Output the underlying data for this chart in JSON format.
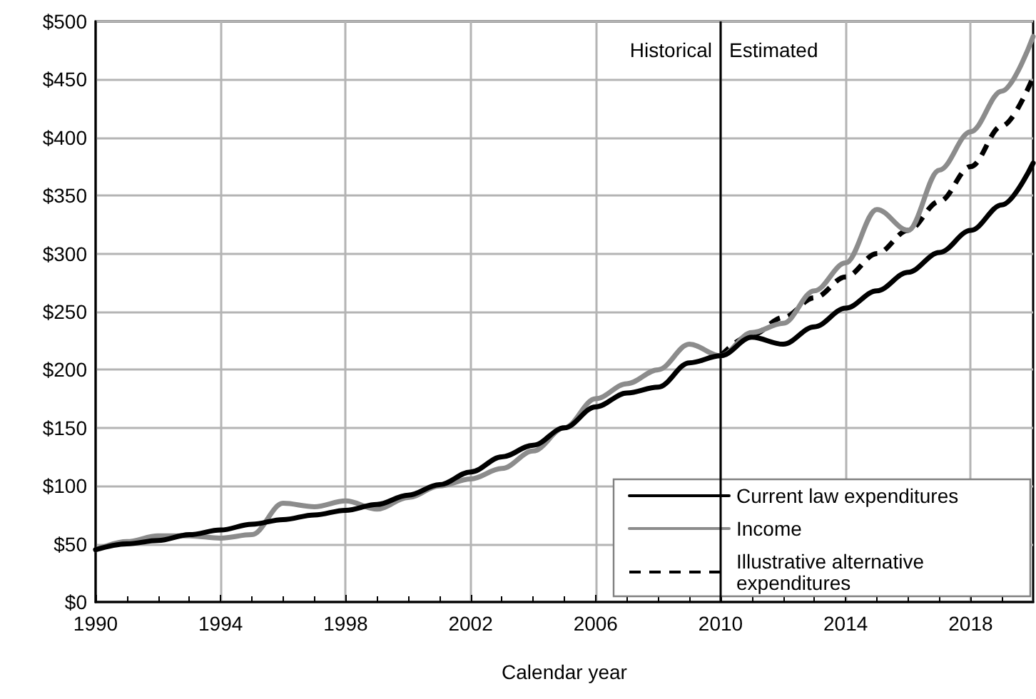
{
  "chart_data": {
    "type": "line",
    "xlabel": "Calendar year",
    "x": [
      1990,
      1991,
      1992,
      1993,
      1994,
      1995,
      1996,
      1997,
      1998,
      1999,
      2000,
      2001,
      2002,
      2003,
      2004,
      2005,
      2006,
      2007,
      2008,
      2009,
      2010,
      2011,
      2012,
      2013,
      2014,
      2015,
      2016,
      2017,
      2018,
      2019,
      2020
    ],
    "series": [
      {
        "name": "Current law expenditures",
        "color": "#000000",
        "line_style": "solid",
        "values": [
          45,
          50,
          53,
          58,
          62,
          67,
          71,
          75,
          79,
          84,
          92,
          101,
          112,
          125,
          135,
          150,
          168,
          180,
          185,
          206,
          212,
          228,
          222,
          237,
          253,
          268,
          284,
          301,
          320,
          342,
          378
        ]
      },
      {
        "name": "Income",
        "color": "#8c8c8c",
        "line_style": "solid",
        "values": [
          45,
          52,
          57,
          57,
          55,
          58,
          85,
          82,
          87,
          80,
          90,
          100,
          106,
          115,
          130,
          150,
          175,
          188,
          200,
          222,
          212,
          232,
          240,
          268,
          292,
          338,
          320,
          372,
          405,
          440,
          487
        ]
      },
      {
        "name": "Illustrative alternative expenditures",
        "color": "#000000",
        "line_style": "dashed",
        "values": [
          null,
          null,
          null,
          null,
          null,
          null,
          null,
          null,
          null,
          null,
          null,
          null,
          null,
          null,
          null,
          null,
          null,
          null,
          null,
          null,
          212,
          230,
          245,
          262,
          280,
          300,
          320,
          345,
          375,
          410,
          452
        ]
      }
    ],
    "xlim": [
      1990,
      2020
    ],
    "xticks": [
      1990,
      1994,
      1998,
      2002,
      2006,
      2010,
      2014,
      2018
    ],
    "ylim": [
      0,
      500
    ],
    "yticks": [
      {
        "value": 0,
        "label": "$0"
      },
      {
        "value": 50,
        "label": "$50"
      },
      {
        "value": 100,
        "label": "$100"
      },
      {
        "value": 150,
        "label": "$150"
      },
      {
        "value": 200,
        "label": "$200"
      },
      {
        "value": 250,
        "label": "$250"
      },
      {
        "value": 300,
        "label": "$300"
      },
      {
        "value": 350,
        "label": "$350"
      },
      {
        "value": 400,
        "label": "$400"
      },
      {
        "value": 450,
        "label": "$450"
      },
      {
        "value": 500,
        "label": "$500"
      }
    ],
    "ref_lines": [
      {
        "axis": "x",
        "value": 2010,
        "color": "#000000"
      }
    ],
    "annotations": [
      "Historical",
      "Estimated"
    ],
    "grid": true,
    "legend": "bottom right",
    "marker": "none"
  }
}
